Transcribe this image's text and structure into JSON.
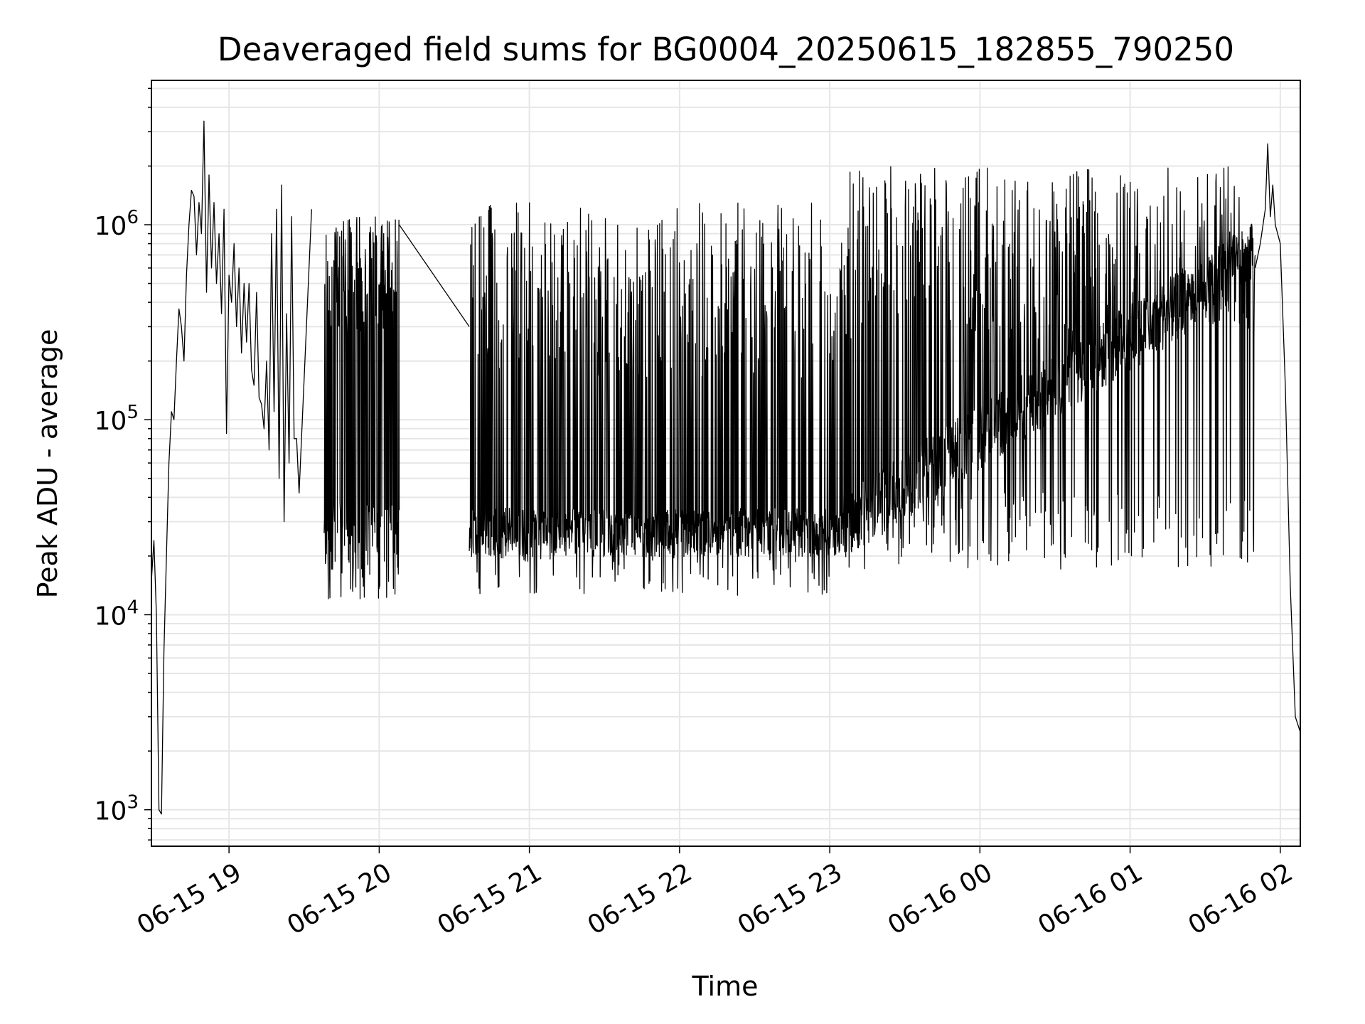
{
  "chart_data": {
    "type": "line",
    "title": "Deaveraged field sums for BG0004_20250615_182855_790250",
    "xlabel": "Time",
    "ylabel": "Peak ADU - average",
    "yscale": "log",
    "xlim": [
      "2025-06-15 18:29",
      "2025-06-16 02:08"
    ],
    "ylim": [
      650,
      5500000
    ],
    "grid": true,
    "grid_color": "#e6e6e6",
    "line_color": "#000000",
    "x_ticks": [
      {
        "t": "2025-06-15 19:00",
        "label": "06-15 19"
      },
      {
        "t": "2025-06-15 20:00",
        "label": "06-15 20"
      },
      {
        "t": "2025-06-15 21:00",
        "label": "06-15 21"
      },
      {
        "t": "2025-06-15 22:00",
        "label": "06-15 22"
      },
      {
        "t": "2025-06-15 23:00",
        "label": "06-15 23"
      },
      {
        "t": "2025-06-16 00:00",
        "label": "06-16 00"
      },
      {
        "t": "2025-06-16 01:00",
        "label": "06-16 01"
      },
      {
        "t": "2025-06-16 02:00",
        "label": "06-16 02"
      }
    ],
    "y_ticks": [
      {
        "value": 1000,
        "base": "10",
        "exp": "3"
      },
      {
        "value": 10000,
        "base": "10",
        "exp": "4"
      },
      {
        "value": 100000,
        "base": "10",
        "exp": "5"
      },
      {
        "value": 1000000,
        "base": "10",
        "exp": "6"
      }
    ],
    "series": [
      {
        "segments": [
          {
            "x_start": "2025-06-15 18:29",
            "x_end": "2025-06-15 19:27",
            "points": [
              [
                "2025-06-15 18:29",
                15000
              ],
              [
                "2025-06-15 18:30",
                24000
              ],
              [
                "2025-06-15 18:31",
                10000
              ],
              [
                "2025-06-15 18:32",
                1000
              ],
              [
                "2025-06-15 18:33",
                950
              ],
              [
                "2025-06-15 18:34",
                6500
              ],
              [
                "2025-06-15 18:35",
                20000
              ],
              [
                "2025-06-15 18:36",
                60000
              ],
              [
                "2025-06-15 18:37",
                110000
              ],
              [
                "2025-06-15 18:38",
                100000
              ],
              [
                "2025-06-15 18:39",
                200000
              ],
              [
                "2025-06-15 18:40",
                370000
              ],
              [
                "2025-06-15 18:41",
                300000
              ],
              [
                "2025-06-15 18:42",
                200000
              ],
              [
                "2025-06-15 18:43",
                550000
              ],
              [
                "2025-06-15 18:44",
                1000000
              ],
              [
                "2025-06-15 18:45",
                1500000
              ],
              [
                "2025-06-15 18:46",
                1400000
              ],
              [
                "2025-06-15 18:47",
                700000
              ],
              [
                "2025-06-15 18:48",
                1300000
              ],
              [
                "2025-06-15 18:49",
                900000
              ],
              [
                "2025-06-15 18:50",
                3400000
              ],
              [
                "2025-06-15 18:51",
                450000
              ],
              [
                "2025-06-15 18:52",
                1800000
              ],
              [
                "2025-06-15 18:53",
                600000
              ],
              [
                "2025-06-15 18:54",
                1300000
              ],
              [
                "2025-06-15 18:55",
                500000
              ],
              [
                "2025-06-15 18:56",
                900000
              ],
              [
                "2025-06-15 18:57",
                350000
              ],
              [
                "2025-06-15 18:58",
                1200000
              ],
              [
                "2025-06-15 18:59",
                85000
              ],
              [
                "2025-06-15 19:00",
                550000
              ],
              [
                "2025-06-15 19:01",
                400000
              ],
              [
                "2025-06-15 19:02",
                800000
              ],
              [
                "2025-06-15 19:03",
                300000
              ],
              [
                "2025-06-15 19:04",
                600000
              ],
              [
                "2025-06-15 19:05",
                220000
              ],
              [
                "2025-06-15 19:06",
                500000
              ],
              [
                "2025-06-15 19:07",
                250000
              ],
              [
                "2025-06-15 19:08",
                500000
              ],
              [
                "2025-06-15 19:09",
                180000
              ],
              [
                "2025-06-15 19:10",
                150000
              ],
              [
                "2025-06-15 19:11",
                450000
              ],
              [
                "2025-06-15 19:12",
                130000
              ],
              [
                "2025-06-15 19:13",
                120000
              ],
              [
                "2025-06-15 19:14",
                90000
              ],
              [
                "2025-06-15 19:15",
                200000
              ],
              [
                "2025-06-15 19:16",
                70000
              ],
              [
                "2025-06-15 19:17",
                900000
              ],
              [
                "2025-06-15 19:18",
                110000
              ],
              [
                "2025-06-15 19:19",
                1200000
              ],
              [
                "2025-06-15 19:20",
                50000
              ],
              [
                "2025-06-15 19:21",
                1600000
              ],
              [
                "2025-06-15 19:22",
                30000
              ],
              [
                "2025-06-15 19:23",
                350000
              ],
              [
                "2025-06-15 19:24",
                60000
              ],
              [
                "2025-06-15 19:25",
                1100000
              ],
              [
                "2025-06-15 19:26",
                80000
              ],
              [
                "2025-06-15 19:27",
                80000
              ],
              [
                "2025-06-15 19:28",
                42000
              ]
            ]
          },
          {
            "x_start": "2025-06-15 19:28",
            "x_end": "2025-06-15 19:33",
            "points": [
              [
                "2025-06-15 19:28",
                42000
              ],
              [
                "2025-06-15 19:33",
                1200000
              ]
            ]
          },
          {
            "x_start": "2025-06-15 19:38",
            "x_end": "2025-06-15 20:08",
            "band_low": 20000,
            "band_high": 1000000,
            "spike_min": 12000,
            "spike_max": 1100000
          },
          {
            "x_start": "2025-06-15 20:08",
            "x_end": "2025-06-15 20:36",
            "points": [
              [
                "2025-06-15 20:08",
                1000000
              ],
              [
                "2025-06-15 20:36",
                300000
              ]
            ]
          },
          {
            "x_start": "2025-06-15 20:36",
            "x_end": "2025-06-15 23:05",
            "band_low": 25000,
            "band_high": 35000,
            "spike_min": 12500,
            "spike_max": 1300000
          },
          {
            "x_start": "2025-06-15 23:05",
            "x_end": "2025-06-16 01:50",
            "band_low": 28000,
            "band_high": 700000,
            "spike_min": 17000,
            "spike_max": 2000000
          },
          {
            "x_start": "2025-06-16 01:50",
            "x_end": "2025-06-16 02:08",
            "points": [
              [
                "2025-06-16 01:50",
                600000
              ],
              [
                "2025-06-16 01:52",
                800000
              ],
              [
                "2025-06-16 01:54",
                1200000
              ],
              [
                "2025-06-16 01:55",
                2600000
              ],
              [
                "2025-06-16 01:56",
                1100000
              ],
              [
                "2025-06-16 01:57",
                1600000
              ],
              [
                "2025-06-16 01:58",
                1000000
              ],
              [
                "2025-06-16 02:00",
                800000
              ],
              [
                "2025-06-16 02:02",
                150000
              ],
              [
                "2025-06-16 02:04",
                14000
              ],
              [
                "2025-06-16 02:06",
                3000
              ],
              [
                "2025-06-16 02:08",
                2500
              ]
            ]
          }
        ]
      }
    ]
  }
}
